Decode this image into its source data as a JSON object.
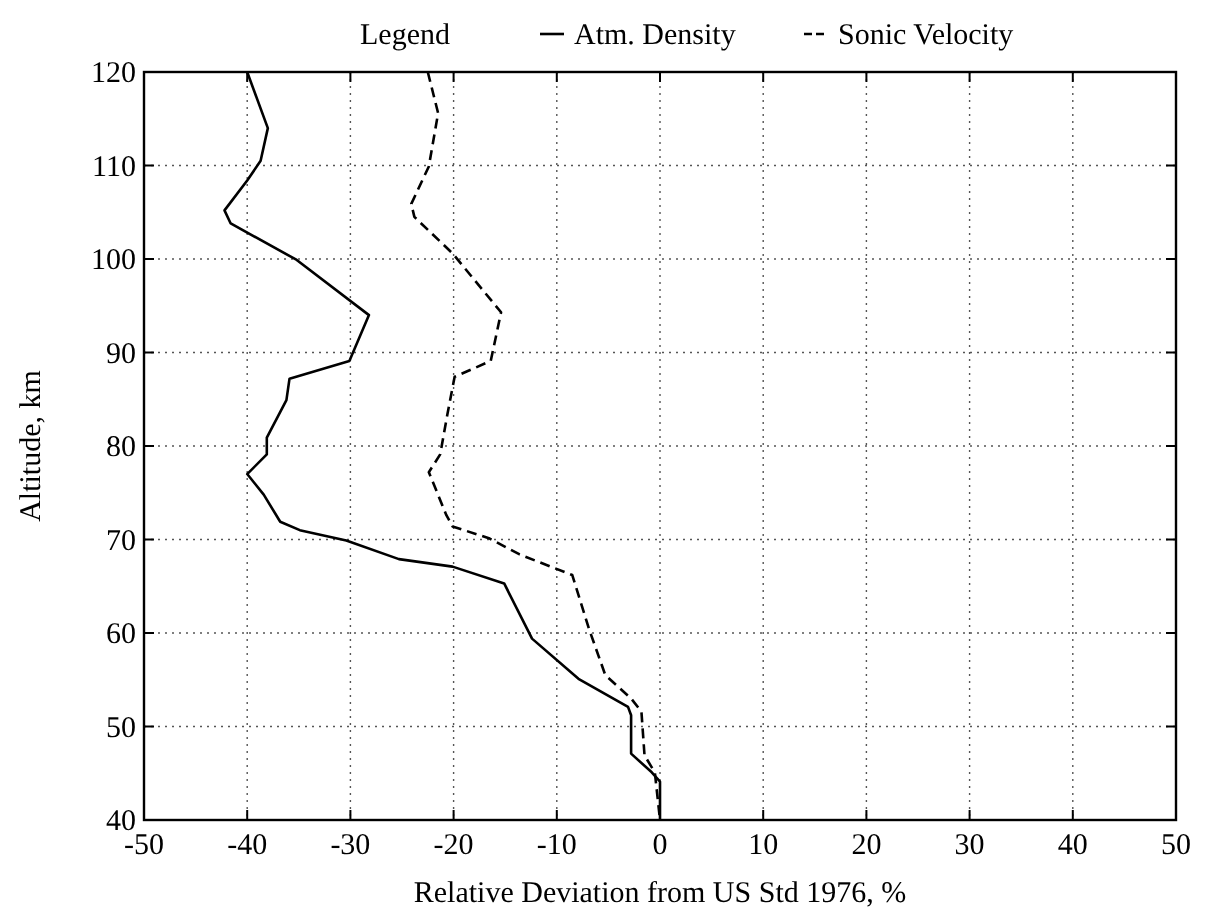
{
  "chart_data": {
    "type": "line",
    "legend_title": "Legend",
    "xlabel": "Relative Deviation from US Std 1976, %",
    "ylabel": "Altitude, km",
    "xlim": [
      -50,
      50
    ],
    "xticks": [
      -50,
      -40,
      -30,
      -20,
      -10,
      0,
      10,
      20,
      30,
      40,
      50
    ],
    "ylim": [
      40,
      120
    ],
    "yticks": [
      40,
      50,
      60,
      70,
      80,
      90,
      100,
      110,
      120
    ],
    "grid": true,
    "legend": "top",
    "marker": "none",
    "series": [
      {
        "name": "Atm. Density",
        "color": "#000000",
        "line_style": "solid",
        "x": [
          -40,
          -38,
          -38.7,
          -40,
          -42.2,
          -41.6,
          -35.2,
          -28.2,
          -30.1,
          -35.9,
          -36.2,
          -38.1,
          -38.1,
          -40,
          -38.4,
          -36.8,
          -34.9,
          -30.4,
          -25.3,
          -20.1,
          -15.1,
          -12.4,
          -7.9,
          -3.1,
          -2.8,
          -2.8,
          -0.8,
          0,
          0
        ],
        "values": [
          120,
          114,
          110.5,
          108.4,
          105.2,
          103.8,
          99.9,
          94,
          89.1,
          87.2,
          84.9,
          80.9,
          79.1,
          77,
          74.8,
          71.9,
          71,
          69.9,
          67.9,
          67.1,
          65.3,
          59.4,
          55.1,
          52.1,
          51.2,
          47.1,
          45.1,
          44.1,
          40
        ]
      },
      {
        "name": "Sonic Velocity",
        "color": "#000000",
        "line_style": "dashed",
        "x": [
          -22.5,
          -21.5,
          -22.4,
          -24.1,
          -23.8,
          -20.1,
          -15.4,
          -16.4,
          -19.9,
          -20.6,
          -21.3,
          -22.4,
          -20.7,
          -20.1,
          -16.5,
          -13.6,
          -8.5,
          -6.9,
          -5.3,
          -2.8,
          -1.8,
          -1.5,
          -0.5,
          0
        ],
        "values": [
          120,
          115.6,
          109.9,
          105.9,
          104.5,
          100.6,
          94.3,
          89.1,
          87.4,
          83.4,
          79.1,
          77.2,
          72.6,
          71.4,
          70.1,
          68.4,
          66.2,
          60.5,
          55.5,
          53,
          51.6,
          46.9,
          45.1,
          40
        ]
      }
    ]
  }
}
